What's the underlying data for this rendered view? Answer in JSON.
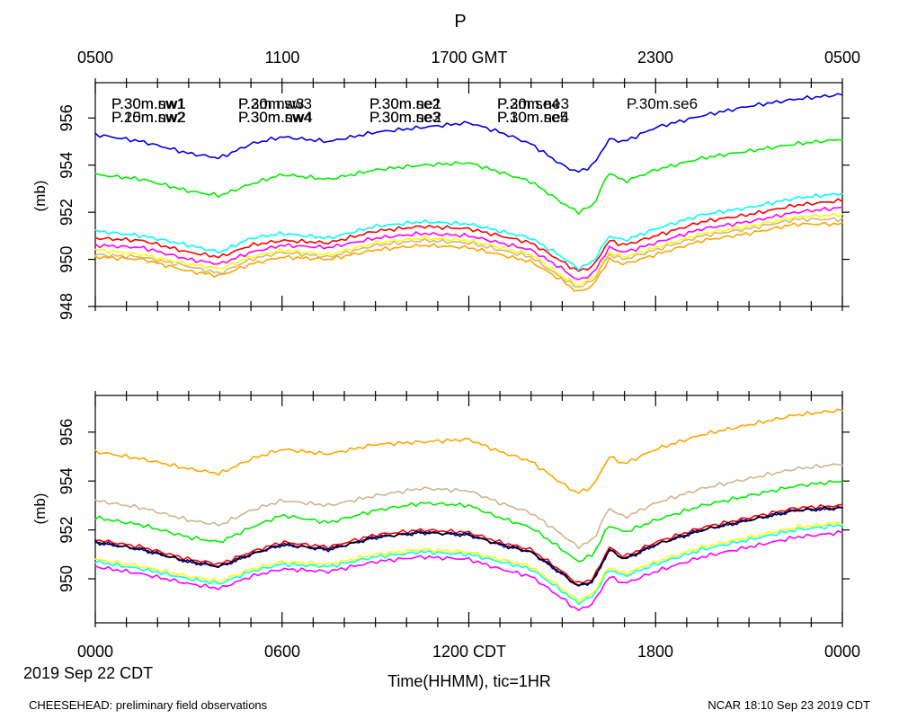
{
  "figure": {
    "title": "P",
    "top_axis_labels": [
      "0500",
      "1100",
      "1700 GMT",
      "2300",
      "0500"
    ],
    "bottom_axis_labels": [
      "0000",
      "0600",
      "1200 CDT",
      "1800",
      "0000"
    ],
    "date_label": "2019 Sep 22 CDT",
    "xlabel": "Time(HHMM), tic=1HR",
    "footer_left": "CHEESEHEAD: preliminary field observations",
    "footer_right": "NCAR 18:10 Sep 23 2019 CDT"
  },
  "chart_data": [
    {
      "type": "line",
      "title": "P",
      "xlabel": "Time(HHMM), tic=1HR",
      "ylabel": "(mb)",
      "xlim": [
        0,
        24
      ],
      "ylim": [
        948,
        957.5
      ],
      "yticks": [
        948,
        950,
        952,
        954,
        956
      ],
      "ytick_labels": [
        "948",
        "950",
        "952",
        "954",
        "956"
      ],
      "x": [
        0,
        1.5,
        3,
        4,
        5,
        6,
        7.5,
        9,
        10.5,
        12,
        13,
        14,
        15,
        15.5,
        16,
        16.5,
        17,
        18,
        19.5,
        21,
        22.5,
        24
      ],
      "series": [
        {
          "name": "P.30m.nw1",
          "color": "#ff0000",
          "values": [
            950.9,
            950.8,
            950.3,
            950.1,
            950.6,
            950.8,
            950.7,
            951.2,
            951.4,
            951.3,
            951.0,
            950.7,
            949.9,
            949.5,
            949.7,
            950.8,
            950.6,
            951.0,
            951.6,
            951.9,
            952.3,
            952.5
          ]
        },
        {
          "name": "P.10m.nw2",
          "color": "#00ee00",
          "values": [
            953.6,
            953.4,
            952.9,
            952.7,
            953.2,
            953.6,
            953.4,
            953.8,
            954.0,
            954.1,
            953.7,
            953.3,
            952.4,
            952.0,
            952.3,
            953.7,
            953.3,
            953.8,
            954.3,
            954.6,
            954.9,
            955.1
          ]
        },
        {
          "name": "P.2m.nw3",
          "color": "#0000dd",
          "values": [
            955.3,
            955.0,
            954.5,
            954.3,
            954.9,
            955.2,
            955.0,
            955.4,
            955.6,
            955.8,
            955.4,
            954.9,
            954.0,
            953.7,
            954.0,
            955.1,
            955.0,
            955.6,
            956.1,
            956.5,
            956.8,
            957.0
          ]
        },
        {
          "name": "P.30m.nw4",
          "color": "#00ffff",
          "values": [
            951.2,
            951.0,
            950.6,
            950.3,
            950.9,
            951.1,
            950.9,
            951.4,
            951.6,
            951.5,
            951.2,
            950.9,
            950.1,
            949.6,
            949.9,
            951.0,
            950.8,
            951.3,
            951.9,
            952.2,
            952.6,
            952.8
          ]
        },
        {
          "name": "P.30m.ne1",
          "color": "#ff00ff",
          "values": [
            950.6,
            950.5,
            950.0,
            949.8,
            950.3,
            950.6,
            950.5,
            950.9,
            951.1,
            951.0,
            950.7,
            950.4,
            949.6,
            949.1,
            949.4,
            950.5,
            950.3,
            950.7,
            951.3,
            951.6,
            952.0,
            952.2
          ]
        },
        {
          "name": "P.30m.ne2",
          "color": "#ffff00",
          "values": [
            950.4,
            950.2,
            949.8,
            949.6,
            950.1,
            950.4,
            950.2,
            950.7,
            950.9,
            950.8,
            950.5,
            950.2,
            949.3,
            948.9,
            949.2,
            950.3,
            950.1,
            950.5,
            951.1,
            951.4,
            951.8,
            951.9
          ]
        },
        {
          "name": "P.30m.ne3",
          "color": "#ffa500",
          "values": [
            950.1,
            950.0,
            949.5,
            949.3,
            949.8,
            950.1,
            950.0,
            950.4,
            950.6,
            950.5,
            950.2,
            949.9,
            949.1,
            948.6,
            948.9,
            950.0,
            949.8,
            950.2,
            950.8,
            951.1,
            951.5,
            951.5
          ]
        },
        {
          "name": "P.30m.ne4",
          "color": "#d2b48c",
          "values": [
            950.2,
            950.1,
            949.7,
            949.4,
            950.0,
            950.3,
            950.1,
            950.6,
            950.8,
            950.7,
            950.4,
            950.1,
            949.2,
            948.8,
            949.1,
            950.2,
            950.0,
            950.4,
            951.0,
            951.3,
            951.7,
            951.7
          ]
        }
      ]
    },
    {
      "type": "line",
      "xlabel": "Time(HHMM), tic=1HR",
      "ylabel": "(mb)",
      "xlim": [
        0,
        24
      ],
      "ylim": [
        948.2,
        957.5
      ],
      "yticks": [
        950,
        952,
        954,
        956
      ],
      "ytick_labels": [
        "950",
        "952",
        "954",
        "956"
      ],
      "x": [
        0,
        1.5,
        3,
        4,
        5,
        6,
        7.5,
        9,
        10.5,
        12,
        13,
        14,
        15,
        15.5,
        16,
        16.5,
        17,
        18,
        19.5,
        21,
        22.5,
        24
      ],
      "series": [
        {
          "name": "P.30m.sw1",
          "color": "#ff0000",
          "values": [
            951.6,
            951.3,
            950.8,
            950.6,
            951.1,
            951.5,
            951.3,
            951.8,
            952.0,
            951.9,
            951.5,
            951.2,
            950.3,
            949.8,
            950.0,
            951.3,
            950.9,
            951.5,
            952.1,
            952.5,
            952.9,
            953.0
          ]
        },
        {
          "name": "P.25m.sw2",
          "color": "#00ee00",
          "values": [
            952.5,
            952.2,
            951.7,
            951.5,
            952.1,
            952.6,
            952.3,
            952.8,
            953.1,
            953.0,
            952.5,
            952.1,
            951.2,
            950.7,
            951.0,
            952.2,
            951.9,
            952.4,
            953.0,
            953.4,
            953.8,
            954.0
          ]
        },
        {
          "name": "P.30m.sw3",
          "color": "#0000dd",
          "values": [
            951.5,
            951.2,
            950.7,
            950.5,
            951.0,
            951.4,
            951.2,
            951.7,
            951.9,
            951.8,
            951.4,
            951.1,
            950.2,
            949.7,
            949.9,
            951.2,
            950.8,
            951.4,
            952.0,
            952.4,
            952.8,
            952.9
          ]
        },
        {
          "name": "P.30m.sw4",
          "color": "#00ffff",
          "values": [
            950.7,
            950.4,
            950.0,
            949.8,
            950.3,
            950.6,
            950.5,
            950.9,
            951.1,
            951.0,
            950.7,
            950.4,
            949.5,
            949.0,
            949.3,
            950.4,
            950.1,
            950.6,
            951.2,
            951.6,
            952.0,
            952.2
          ]
        },
        {
          "name": "P.30m.se2",
          "color": "#ff00ff",
          "values": [
            950.5,
            950.2,
            949.8,
            949.6,
            950.1,
            950.4,
            950.3,
            950.7,
            950.9,
            950.8,
            950.4,
            950.1,
            949.2,
            948.7,
            949.0,
            950.1,
            949.8,
            950.3,
            950.9,
            951.3,
            951.7,
            951.9
          ]
        },
        {
          "name": "P.30m.se3",
          "color": "#ffff00",
          "values": [
            950.8,
            950.5,
            950.1,
            949.9,
            950.4,
            950.7,
            950.6,
            951.0,
            951.2,
            951.1,
            950.8,
            950.5,
            949.6,
            949.1,
            949.4,
            950.5,
            950.2,
            950.7,
            951.3,
            951.7,
            952.1,
            952.3
          ]
        },
        {
          "name": "P.2m.se4",
          "color": "#ffa500",
          "values": [
            955.2,
            954.9,
            954.5,
            954.3,
            954.9,
            955.3,
            955.1,
            955.5,
            955.6,
            955.7,
            955.2,
            954.8,
            953.9,
            953.5,
            953.8,
            955.0,
            954.7,
            955.3,
            955.9,
            956.3,
            956.7,
            956.9
          ]
        },
        {
          "name": "P.10m.se5",
          "color": "#d2b48c",
          "values": [
            953.2,
            952.9,
            952.4,
            952.2,
            952.8,
            953.2,
            953.0,
            953.4,
            953.7,
            953.6,
            953.1,
            952.7,
            951.8,
            951.3,
            951.6,
            952.9,
            952.5,
            953.1,
            953.7,
            954.1,
            954.5,
            954.7
          ]
        },
        {
          "name": "P.30m.se6",
          "color": "#000000",
          "values": [
            951.5,
            951.2,
            950.7,
            950.5,
            951.0,
            951.4,
            951.2,
            951.7,
            951.9,
            951.8,
            951.4,
            951.1,
            950.2,
            949.7,
            949.9,
            951.2,
            950.8,
            951.4,
            952.0,
            952.4,
            952.8,
            952.9
          ]
        }
      ]
    }
  ]
}
